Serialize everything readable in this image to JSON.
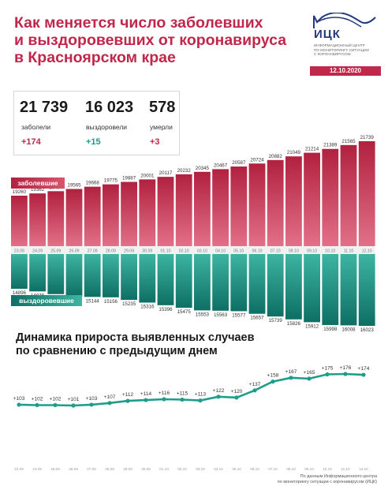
{
  "header": {
    "title_lines": [
      "Как меняется число заболевших",
      "и выздоровевших от коронавируса",
      "в Красноярском крае"
    ]
  },
  "logo": {
    "abbr": "ИЦК",
    "subtitle_lines": [
      "Информационный центр",
      "по мониторингу ситуации",
      "с коронавирусом"
    ]
  },
  "date": "12.10.2020",
  "stats": {
    "cases": {
      "value": "21 739",
      "label": "заболели",
      "delta": "+174"
    },
    "recovered": {
      "value": "16 023",
      "label": "выздоровели",
      "delta": "+15"
    },
    "deaths": {
      "value": "578",
      "label": "умерли",
      "delta": "+3"
    }
  },
  "colors": {
    "accent": "#c0274a",
    "bar_light": "#d9546d",
    "bar_dark": "#b1213f",
    "teal": "#1f9d8b",
    "teal_light": "#3db4a2",
    "teal_dark": "#0e6f64",
    "navy": "#233b7c"
  },
  "sub_title_lines": [
    "Динамика прироста выявленных случаев",
    "по сравнению с предыдущим днем"
  ],
  "footer_lines": [
    "По данным Информационного центра",
    "по мониторингу ситуации с коронавирусом (ИЦК)"
  ],
  "chart_data": [
    {
      "type": "bar",
      "categories": [
        "23.09",
        "24.09",
        "25.09",
        "26.09",
        "27.09",
        "28.09",
        "29.09",
        "30.09",
        "01.10",
        "02.10",
        "03.10",
        "04.10",
        "05.10",
        "06.10",
        "07.10",
        "08.10",
        "09.10",
        "10.10",
        "11.10",
        "12.10"
      ],
      "series": [
        {
          "name": "заболевшие",
          "values": [
            19260,
            19362,
            19464,
            19565,
            19668,
            19775,
            19887,
            20001,
            20117,
            20232,
            20345,
            20467,
            20587,
            20724,
            20882,
            21049,
            21214,
            21389,
            21565,
            21739
          ]
        },
        {
          "name": "выздоровевшие",
          "values": [
            14896,
            14976,
            15058,
            15135,
            15144,
            15156,
            15235,
            15316,
            15396,
            15475,
            15553,
            15563,
            15577,
            15657,
            15739,
            15826,
            15912,
            15998,
            16008,
            16023
          ]
        }
      ]
    },
    {
      "type": "line",
      "title": "Динамика прироста выявленных случаев по сравнению с предыдущим днем",
      "categories": [
        "23.09",
        "24.09",
        "25.09",
        "26.09",
        "27.09",
        "28.09",
        "29.09",
        "30.09",
        "01.10",
        "02.10",
        "03.10",
        "04.10",
        "05.10",
        "06.10",
        "07.10",
        "08.10",
        "09.10",
        "10.10",
        "11.10",
        "12.10"
      ],
      "values": [
        103,
        102,
        102,
        101,
        103,
        107,
        112,
        114,
        116,
        115,
        113,
        122,
        120,
        137,
        158,
        167,
        165,
        175,
        176,
        174
      ],
      "labels": [
        "+103",
        "+102",
        "+102",
        "+101",
        "+103",
        "+107",
        "+112",
        "+114",
        "+116",
        "+115",
        "+113",
        "+122",
        "+120",
        "+137",
        "+158",
        "+167",
        "+165",
        "+175",
        "+176",
        "+174"
      ]
    }
  ]
}
